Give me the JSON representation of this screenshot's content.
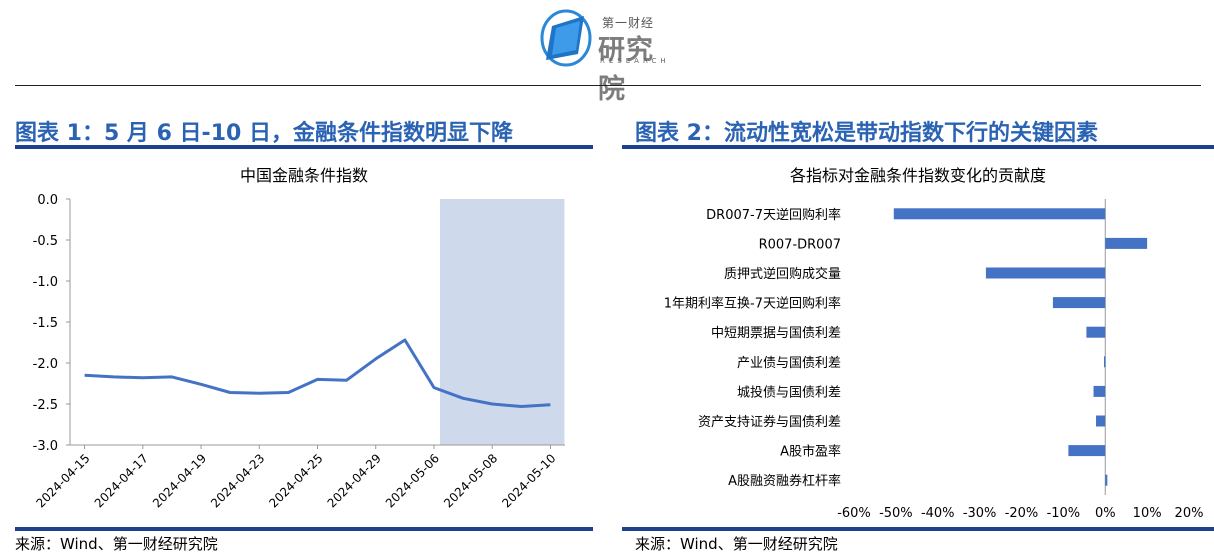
{
  "logo": {
    "top_text": "第一财经",
    "main_text": "研究院",
    "sub_text": "RESEARCH"
  },
  "left_panel": {
    "heading": "图表 1：5 月 6 日-10 日，金融条件指数明显下降",
    "source": "来源：Wind、第一财经研究院",
    "chart_data": {
      "type": "line",
      "title": "中国金融条件指数",
      "xlabel": "",
      "ylabel": "",
      "ylim": [
        -3.0,
        0.0
      ],
      "yticks": [
        "0.0",
        "-0.5",
        "-1.0",
        "-1.5",
        "-2.0",
        "-2.5",
        "-3.0"
      ],
      "x_tick_labels": [
        "2024-04-15",
        "2024-04-17",
        "2024-04-19",
        "2024-04-23",
        "2024-04-25",
        "2024-04-29",
        "2024-05-06",
        "2024-05-08",
        "2024-05-10"
      ],
      "highlight_range": [
        "2024-05-06",
        "2024-05-10"
      ],
      "series": [
        {
          "color": "#4472c4",
          "x": [
            "2024-04-15",
            "2024-04-16",
            "2024-04-17",
            "2024-04-18",
            "2024-04-19",
            "2024-04-22",
            "2024-04-23",
            "2024-04-24",
            "2024-04-25",
            "2024-04-26",
            "2024-04-29",
            "2024-04-30",
            "2024-05-06",
            "2024-05-07",
            "2024-05-08",
            "2024-05-09",
            "2024-05-10"
          ],
          "values": [
            -2.15,
            -2.17,
            -2.18,
            -2.17,
            -2.26,
            -2.36,
            -2.37,
            -2.36,
            -2.2,
            -2.21,
            -1.95,
            -1.72,
            -2.3,
            -2.43,
            -2.5,
            -2.53,
            -2.51
          ]
        }
      ]
    }
  },
  "right_panel": {
    "heading": "图表 2：流动性宽松是带动指数下行的关键因素",
    "source": "来源：Wind、第一财经研究院",
    "chart_data": {
      "type": "bar",
      "orientation": "horizontal",
      "title": "各指标对金融条件指数变化的贡献度",
      "xlabel": "",
      "ylabel": "",
      "xlim": [
        -60,
        20
      ],
      "xticks": [
        "-60%",
        "-50%",
        "-40%",
        "-30%",
        "-20%",
        "-10%",
        "0%",
        "10%",
        "20%"
      ],
      "categories": [
        "DR007-7天逆回购利率",
        "R007-DR007",
        "质押式逆回购成交量",
        "1年期利率互换-7天逆回购利率",
        "中短期票据与国债利差",
        "产业债与国债利差",
        "城投债与国债利差",
        "资产支持证券与国债利差",
        "A股市盈率",
        "A股融资融券杠杆率"
      ],
      "values": [
        -50.5,
        10,
        -28.5,
        -12.5,
        -4.5,
        -0.3,
        -2.8,
        -2.2,
        -8.8,
        0.5
      ],
      "color": "#4472c4"
    }
  }
}
